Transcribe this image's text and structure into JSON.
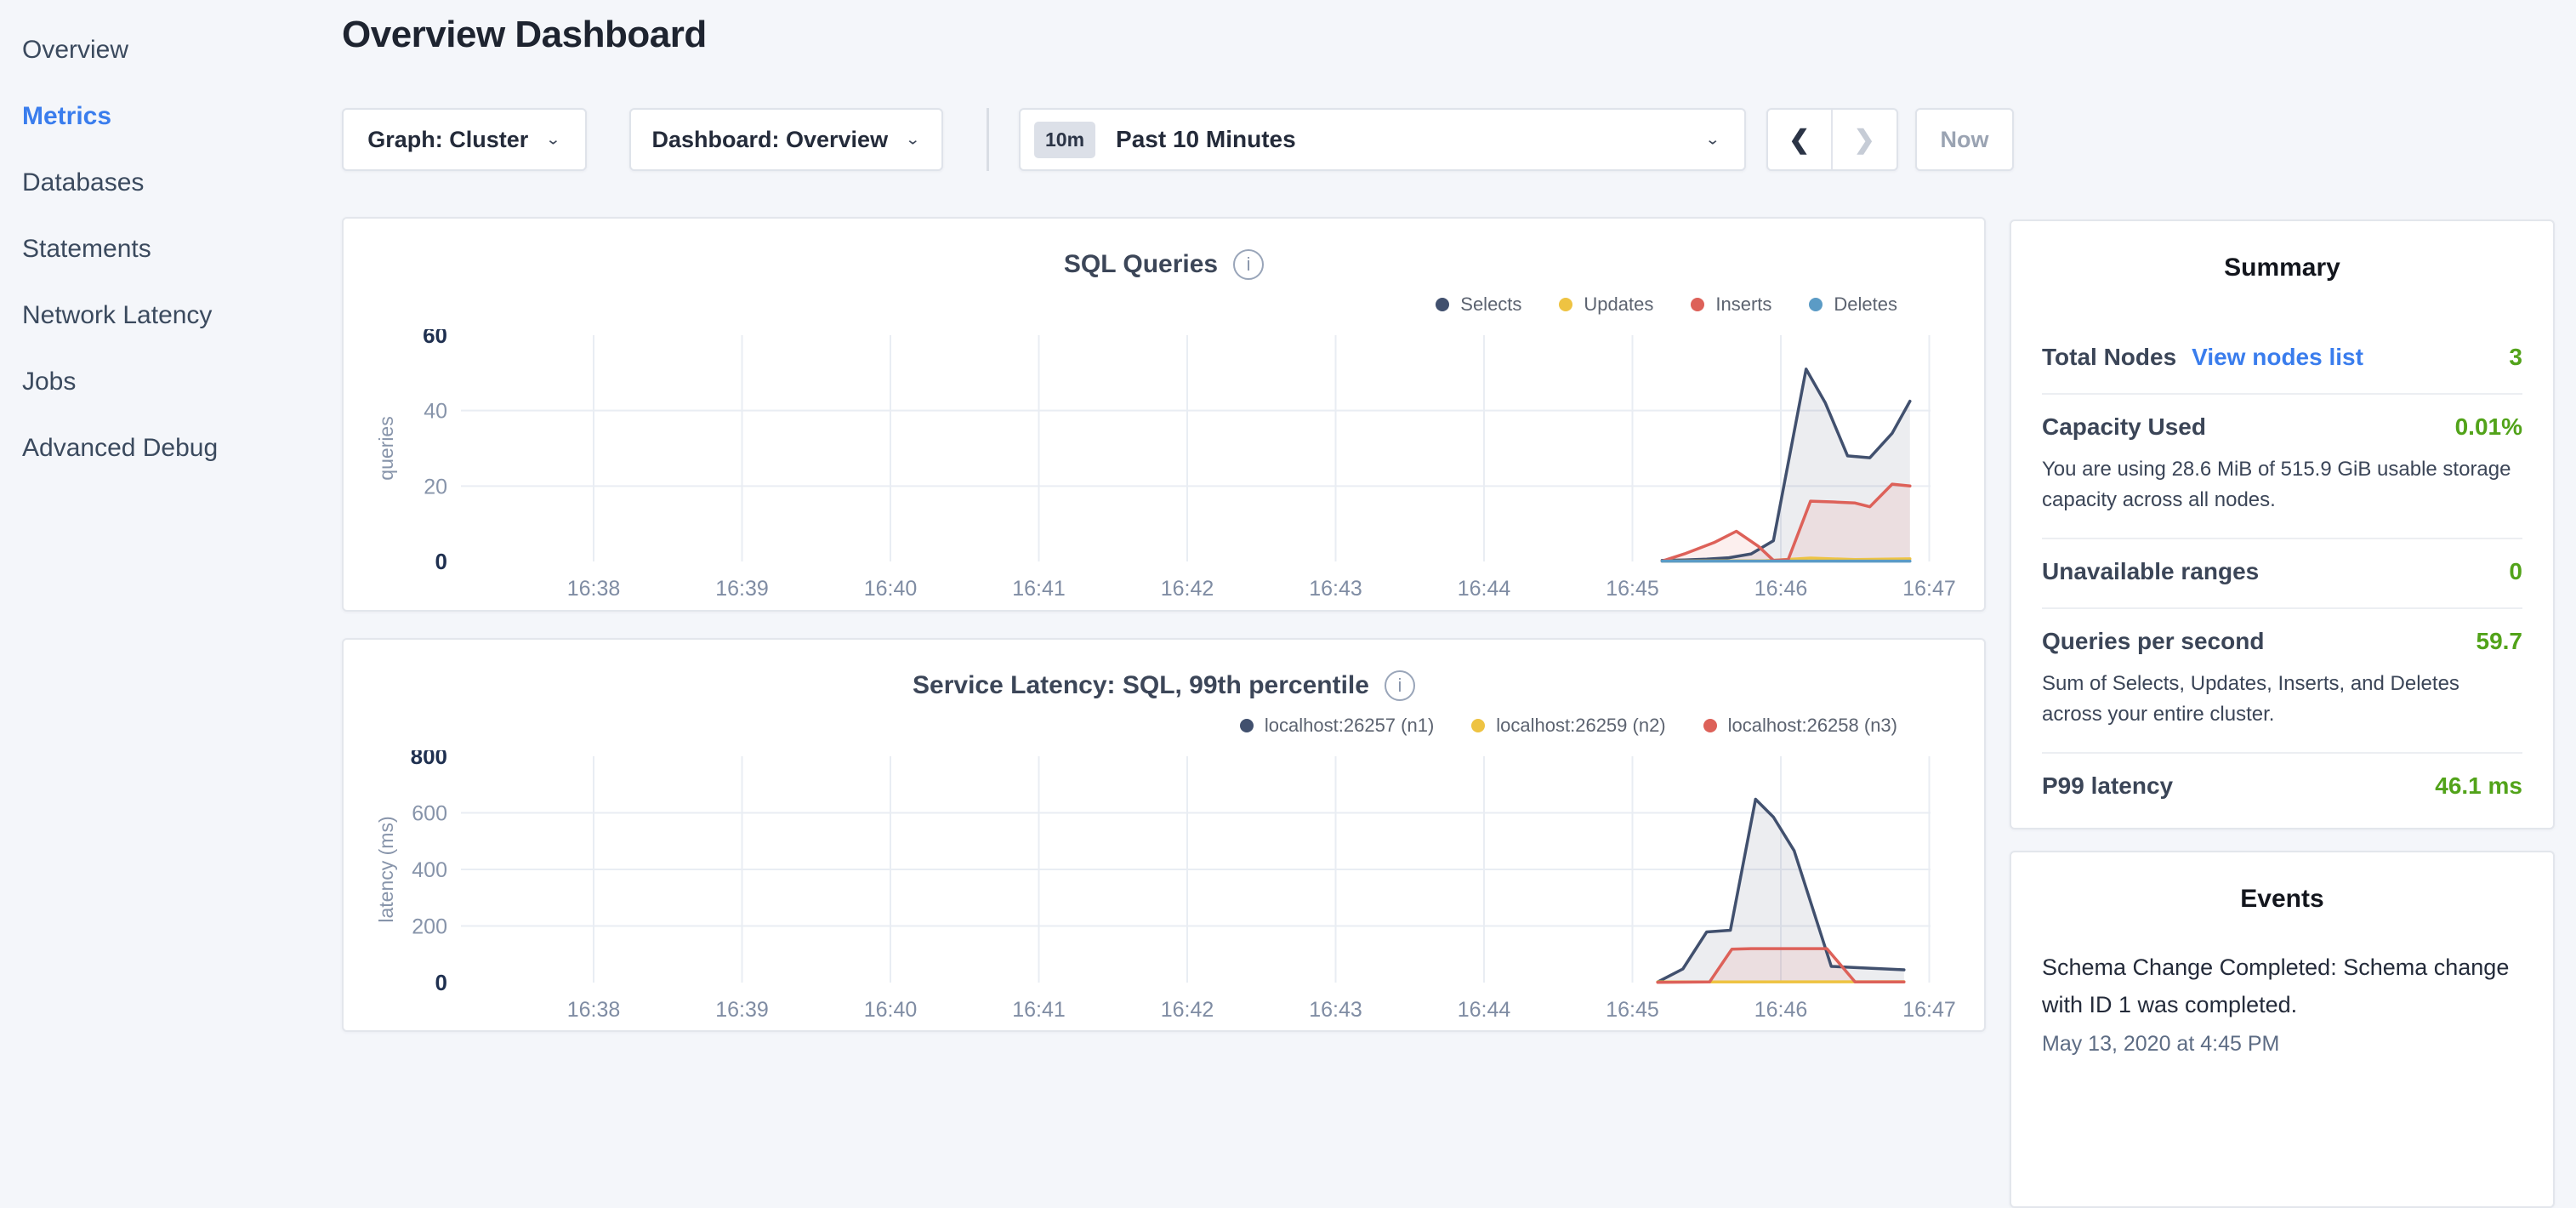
{
  "colors": {
    "accent_blue": "#3a7ded",
    "value_green": "#52a31a",
    "series_navy": "#41506e",
    "series_yellow": "#eec342",
    "series_red": "#dd6159",
    "series_blue": "#5b9bc5",
    "grid": "#e9edf3"
  },
  "sidebar": {
    "items": [
      {
        "label": "Overview",
        "active": false
      },
      {
        "label": "Metrics",
        "active": true
      },
      {
        "label": "Databases",
        "active": false
      },
      {
        "label": "Statements",
        "active": false
      },
      {
        "label": "Network Latency",
        "active": false
      },
      {
        "label": "Jobs",
        "active": false
      },
      {
        "label": "Advanced Debug",
        "active": false
      }
    ]
  },
  "header": {
    "title": "Overview Dashboard",
    "graph_dropdown": "Graph: Cluster",
    "dashboard_dropdown": "Dashboard: Overview",
    "chevron": "⌄",
    "time_badge": "10m",
    "time_range": "Past 10 Minutes",
    "prev_arrow": "❮",
    "next_arrow": "❯",
    "now_label": "Now"
  },
  "chart_data": [
    {
      "type": "line",
      "title": "SQL Queries",
      "info_icon": "i",
      "ylabel": "queries",
      "ylim": [
        0,
        60
      ],
      "yticks": [
        0,
        20,
        40,
        60
      ],
      "x_ticks": [
        "16:38",
        "16:39",
        "16:40",
        "16:41",
        "16:42",
        "16:43",
        "16:44",
        "16:45",
        "16:46",
        "16:47"
      ],
      "legend_position": "top-right",
      "grid": true,
      "series": [
        {
          "name": "Selects",
          "color": "#41506e",
          "fill": true,
          "points": [
            [
              7.2,
              0.3
            ],
            [
              7.35,
              0.4
            ],
            [
              7.5,
              0.6
            ],
            [
              7.65,
              1
            ],
            [
              7.8,
              2
            ],
            [
              7.95,
              5.5
            ],
            [
              8.17,
              51
            ],
            [
              8.3,
              42
            ],
            [
              8.45,
              28
            ],
            [
              8.6,
              27.5
            ],
            [
              8.75,
              34
            ],
            [
              8.87,
              42.5
            ]
          ]
        },
        {
          "name": "Updates",
          "color": "#eec342",
          "fill": false,
          "points": [
            [
              7.2,
              0.1
            ],
            [
              7.9,
              0.2
            ],
            [
              8.2,
              0.9
            ],
            [
              8.5,
              0.5
            ],
            [
              8.87,
              0.7
            ]
          ]
        },
        {
          "name": "Inserts",
          "color": "#dd6159",
          "fill": true,
          "points": [
            [
              7.2,
              0.1
            ],
            [
              7.35,
              2
            ],
            [
              7.55,
              5
            ],
            [
              7.7,
              8
            ],
            [
              7.85,
              4
            ],
            [
              7.95,
              0.3
            ],
            [
              8.05,
              0.5
            ],
            [
              8.2,
              16
            ],
            [
              8.35,
              15.8
            ],
            [
              8.5,
              15.5
            ],
            [
              8.6,
              14.5
            ],
            [
              8.75,
              20.5
            ],
            [
              8.87,
              20
            ]
          ]
        },
        {
          "name": "Deletes",
          "color": "#5b9bc5",
          "fill": false,
          "points": [
            [
              7.2,
              0.1
            ],
            [
              8.87,
              0.1
            ]
          ]
        }
      ]
    },
    {
      "type": "line",
      "title": "Service Latency: SQL, 99th percentile",
      "info_icon": "i",
      "ylabel": "latency (ms)",
      "ylim": [
        0,
        800
      ],
      "yticks": [
        0,
        200,
        400,
        600,
        800
      ],
      "x_ticks": [
        "16:38",
        "16:39",
        "16:40",
        "16:41",
        "16:42",
        "16:43",
        "16:44",
        "16:45",
        "16:46",
        "16:47"
      ],
      "legend_position": "top-right",
      "grid": true,
      "series": [
        {
          "name": "localhost:26257 (n1)",
          "color": "#41506e",
          "fill": true,
          "points": [
            [
              7.17,
              2
            ],
            [
              7.34,
              48
            ],
            [
              7.5,
              179
            ],
            [
              7.66,
              185
            ],
            [
              7.83,
              648
            ],
            [
              7.95,
              585
            ],
            [
              8.09,
              466
            ],
            [
              8.34,
              57
            ],
            [
              8.55,
              52
            ],
            [
              8.83,
              45
            ]
          ]
        },
        {
          "name": "localhost:26259 (n2)",
          "color": "#eec342",
          "fill": false,
          "points": [
            [
              7.17,
              2
            ],
            [
              8.83,
              3
            ]
          ]
        },
        {
          "name": "localhost:26258 (n3)",
          "color": "#dd6159",
          "fill": true,
          "points": [
            [
              7.17,
              1
            ],
            [
              7.52,
              2
            ],
            [
              7.67,
              118
            ],
            [
              7.8,
              120
            ],
            [
              8.31,
              120
            ],
            [
              8.5,
              2
            ],
            [
              8.83,
              2
            ]
          ]
        }
      ]
    }
  ],
  "summary": {
    "title": "Summary",
    "rows": [
      {
        "label": "Total Nodes",
        "link": "View nodes list",
        "value": "3",
        "desc": ""
      },
      {
        "label": "Capacity Used",
        "link": "",
        "value": "0.01%",
        "desc": "You are using 28.6 MiB of 515.9 GiB usable storage capacity across all nodes."
      },
      {
        "label": "Unavailable ranges",
        "link": "",
        "value": "0",
        "desc": ""
      },
      {
        "label": "Queries per second",
        "link": "",
        "value": "59.7",
        "desc": "Sum of Selects, Updates, Inserts, and Deletes across your entire cluster."
      },
      {
        "label": "P99 latency",
        "link": "",
        "value": "46.1 ms",
        "desc": ""
      }
    ]
  },
  "events": {
    "title": "Events",
    "items": [
      {
        "text": "Schema Change Completed: Schema change with ID 1 was completed.",
        "time": "May 13, 2020 at 4:45 PM"
      }
    ]
  }
}
